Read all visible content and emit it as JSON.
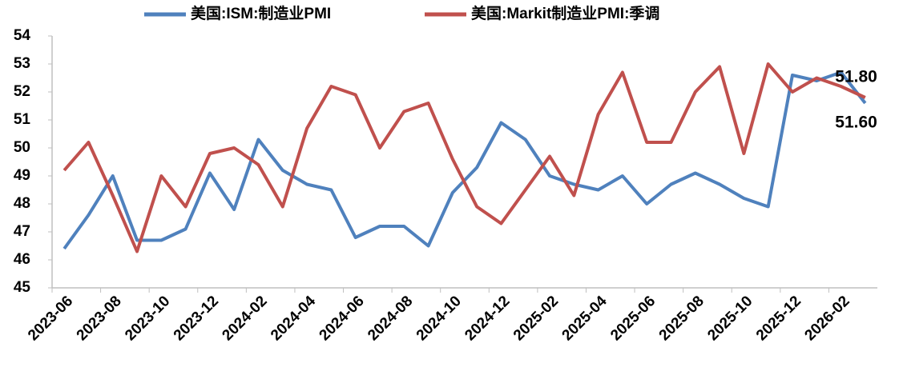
{
  "chart_data": {
    "type": "line",
    "categories": [
      "2023-06",
      null,
      "2023-08",
      null,
      "2023-10",
      null,
      "2023-12",
      null,
      "2024-02",
      null,
      "2024-04",
      null,
      "2024-06",
      null,
      "2024-08",
      null,
      "2024-10",
      null,
      "2024-12",
      null,
      "2025-02",
      null,
      "2025-04",
      null,
      "2025-06",
      null,
      "2025-08",
      null,
      "2025-10",
      null,
      "2025-12",
      null,
      "2026-02",
      null
    ],
    "series": [
      {
        "name": "美国:ISM:制造业PMI",
        "color": "#4f81bd",
        "values": [
          46.4,
          47.6,
          49.0,
          46.7,
          46.7,
          47.1,
          49.1,
          47.8,
          50.3,
          49.2,
          48.7,
          48.5,
          46.8,
          47.2,
          47.2,
          46.5,
          48.4,
          49.3,
          50.9,
          50.3,
          49.0,
          48.7,
          48.5,
          49.0,
          48.0,
          48.7,
          49.1,
          48.7,
          48.2,
          47.9,
          52.6,
          52.4,
          52.7,
          51.6
        ],
        "value_labels": [
          null,
          null,
          null,
          null,
          null,
          null,
          null,
          null,
          null,
          null,
          null,
          null,
          null,
          null,
          null,
          null,
          null,
          null,
          null,
          null,
          null,
          null,
          null,
          null,
          null,
          null,
          null,
          null,
          null,
          null,
          null,
          null,
          null,
          "51.60"
        ]
      },
      {
        "name": "美国:Markit制造业PMI:季调",
        "color": "#c0504d",
        "values": [
          49.2,
          50.2,
          48.3,
          46.3,
          49.0,
          47.9,
          49.8,
          50.0,
          49.4,
          47.9,
          50.7,
          52.2,
          51.9,
          50.0,
          51.3,
          51.6,
          49.6,
          47.9,
          47.3,
          48.5,
          49.7,
          48.3,
          51.2,
          52.7,
          50.2,
          50.2,
          52.0,
          52.9,
          49.8,
          53.0,
          52.0,
          52.5,
          52.2,
          51.8
        ],
        "value_labels": [
          null,
          null,
          null,
          null,
          null,
          null,
          null,
          null,
          null,
          null,
          null,
          null,
          null,
          null,
          null,
          null,
          null,
          null,
          null,
          null,
          null,
          null,
          null,
          null,
          null,
          null,
          null,
          null,
          null,
          null,
          null,
          null,
          null,
          "51.80"
        ]
      }
    ],
    "ylim": [
      45,
      54
    ],
    "yticks": [
      45,
      46,
      47,
      48,
      49,
      50,
      51,
      52,
      53,
      54
    ],
    "grid": false,
    "legend": "top"
  }
}
